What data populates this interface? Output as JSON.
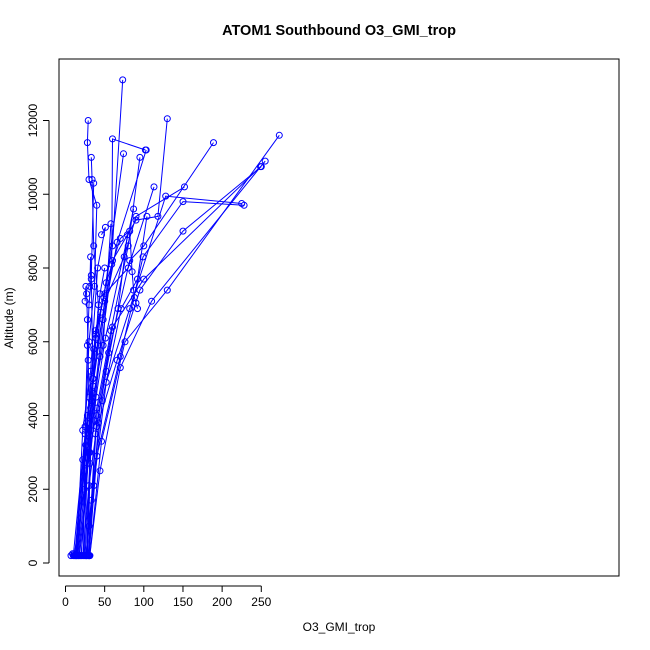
{
  "chart_data": {
    "type": "line",
    "title": "ATOM1 Southbound O3_GMI_trop",
    "xlabel": "O3_GMI_trop",
    "ylabel": "Altitude (m)",
    "xlim": [
      0,
      280
    ],
    "ylim": [
      0,
      13000
    ],
    "x_ticks": [
      0,
      50,
      100,
      150,
      200,
      250
    ],
    "y_ticks": [
      0,
      2000,
      4000,
      6000,
      8000,
      10000,
      12000
    ],
    "grid": false,
    "legend": "none",
    "marker": "open-circle",
    "color": "#0000ff",
    "series": [
      {
        "x": [
          10,
          25,
          30,
          37,
          40,
          30,
          28,
          29
        ],
        "y": [
          200,
          3500,
          6000,
          7500,
          9700,
          10400,
          11400,
          12000
        ]
      },
      {
        "x": [
          12,
          22,
          35,
          42,
          36,
          34,
          33
        ],
        "y": [
          200,
          2800,
          5000,
          7000,
          8600,
          10400,
          11000
        ]
      },
      {
        "x": [
          14,
          24,
          32,
          45,
          60,
          73
        ],
        "y": [
          200,
          2500,
          4200,
          6800,
          8600,
          13100
        ]
      },
      {
        "x": [
          16,
          26,
          36,
          52,
          70,
          82,
          85,
          87,
          88,
          90,
          92
        ],
        "y": [
          200,
          3200,
          5800,
          7600,
          8800,
          9000,
          7900,
          7400,
          7200,
          7050,
          6900
        ]
      },
      {
        "x": [
          18,
          30,
          44,
          60,
          90,
          118,
          130
        ],
        "y": [
          200,
          3000,
          5600,
          8200,
          9300,
          9400,
          12050
        ]
      },
      {
        "x": [
          20,
          32,
          48,
          66,
          103
        ],
        "y": [
          200,
          3600,
          6600,
          8700,
          11200
        ]
      },
      {
        "x": [
          11,
          24,
          40,
          58,
          80,
          95
        ],
        "y": [
          200,
          2000,
          4200,
          6300,
          8600,
          11000
        ]
      },
      {
        "x": [
          13,
          27,
          41,
          59,
          60,
          102
        ],
        "y": [
          200,
          3800,
          5900,
          8100,
          11500,
          11200
        ]
      },
      {
        "x": [
          15,
          28,
          38,
          50,
          80,
          113
        ],
        "y": [
          200,
          4000,
          6200,
          7300,
          8000,
          10200
        ]
      },
      {
        "x": [
          17,
          29,
          35,
          33,
          36
        ],
        "y": [
          200,
          3300,
          5000,
          7800,
          10300
        ]
      },
      {
        "x": [
          27,
          34,
          38,
          49,
          74
        ],
        "y": [
          200,
          4400,
          6300,
          7200,
          11100
        ]
      },
      {
        "x": [
          28,
          35,
          50,
          75,
          90,
          152
        ],
        "y": [
          200,
          4800,
          7100,
          8300,
          9400,
          10200
        ]
      },
      {
        "x": [
          29,
          38,
          55,
          82,
          100,
          189
        ],
        "y": [
          200,
          3500,
          5700,
          8200,
          8600,
          11400
        ]
      },
      {
        "x": [
          30,
          40,
          60,
          100,
          249
        ],
        "y": [
          200,
          4000,
          6400,
          7700,
          10750
        ]
      },
      {
        "x": [
          30,
          42,
          66,
          95,
          150,
          250
        ],
        "y": [
          200,
          3800,
          5500,
          7400,
          9000,
          10750
        ]
      },
      {
        "x": [
          31,
          44,
          70,
          110,
          255
        ],
        "y": [
          200,
          2500,
          5300,
          7100,
          10900
        ]
      },
      {
        "x": [
          31,
          46,
          76,
          130,
          273
        ],
        "y": [
          200,
          3300,
          6000,
          7400,
          11600
        ]
      },
      {
        "x": [
          30,
          40,
          70,
          99,
          150,
          228
        ],
        "y": [
          200,
          2900,
          5600,
          8300,
          9800,
          9700
        ]
      },
      {
        "x": [
          26,
          36,
          52,
          82,
          128,
          225
        ],
        "y": [
          200,
          2100,
          4900,
          6900,
          9950,
          9750
        ]
      },
      {
        "x": [
          26,
          33,
          47,
          71,
          92,
          104
        ],
        "y": [
          200,
          1700,
          4400,
          6900,
          7700,
          9400
        ]
      },
      {
        "x": [
          27,
          30,
          31,
          30,
          29,
          28,
          27,
          26,
          25
        ],
        "y": [
          200,
          1000,
          3000,
          4500,
          5500,
          6600,
          7300,
          7500,
          7100
        ]
      },
      {
        "x": [
          7,
          9,
          11,
          13,
          17,
          19
        ],
        "y": [
          200,
          250,
          250,
          200,
          200,
          200
        ]
      },
      {
        "x": [
          23,
          25,
          28,
          30,
          33,
          32,
          31
        ],
        "y": [
          200,
          3700,
          5900,
          7000,
          7700,
          8300,
          7500
        ]
      },
      {
        "x": [
          14,
          22,
          32,
          41,
          51,
          46
        ],
        "y": [
          200,
          3600,
          5200,
          8000,
          9100,
          8900
        ]
      },
      {
        "x": [
          24,
          28,
          33,
          39,
          44,
          50
        ],
        "y": [
          200,
          2700,
          4400,
          6100,
          7300,
          8000
        ]
      },
      {
        "x": [
          20,
          28,
          36,
          48,
          58
        ],
        "y": [
          200,
          3000,
          4600,
          5900,
          9200
        ]
      },
      {
        "x": [
          22,
          30,
          40,
          52,
          67,
          79
        ],
        "y": [
          200,
          2100,
          3700,
          5200,
          6900,
          8900
        ]
      },
      {
        "x": [
          25,
          31,
          39,
          51,
          87
        ],
        "y": [
          200,
          2700,
          4500,
          6100,
          9600
        ]
      }
    ]
  }
}
